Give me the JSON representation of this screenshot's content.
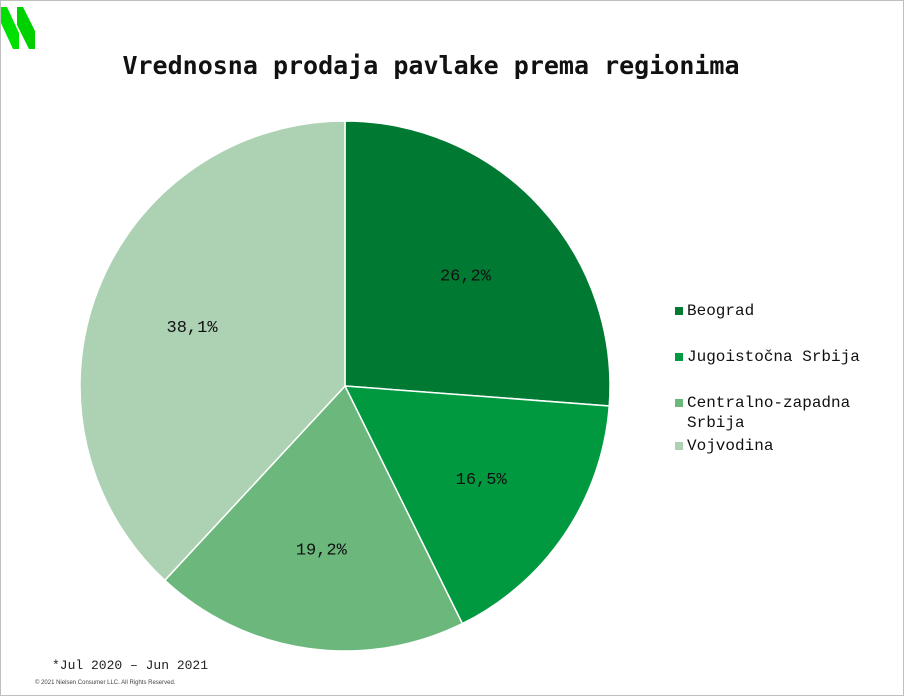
{
  "brand": {
    "colors": [
      "#00e000",
      "#00b400"
    ]
  },
  "chart_data": {
    "type": "pie",
    "title": "Vrednosna prodaja pavlake prema regionima",
    "slices": [
      {
        "name": "Beograd",
        "value": 26.2,
        "label": "26,2%",
        "color": "#007a33"
      },
      {
        "name": "Jugoistočna Srbija",
        "value": 16.5,
        "label": "16,5%",
        "color": "#00993f"
      },
      {
        "name": "Centralno-zapadna Srbija",
        "value": 19.2,
        "label": "19,2%",
        "color": "#6bb77c"
      },
      {
        "name": "Vojvodina",
        "value": 38.1,
        "label": "38,1%",
        "color": "#acd1b3"
      }
    ],
    "legend_position": "right"
  },
  "legend": {
    "items": [
      {
        "label": "Beograd",
        "color": "#007a33"
      },
      {
        "label": "Jugoistočna Srbija",
        "color": "#00993f"
      },
      {
        "label": "Centralno-zapadna Srbija",
        "color": "#6bb77c"
      },
      {
        "label": "Vojvodina",
        "color": "#acd1b3"
      }
    ]
  },
  "footnote": "*Jul 2020 – Jun 2021",
  "copyright": "© 2021 Nielsen Consumer LLC. All Rights Reserved."
}
